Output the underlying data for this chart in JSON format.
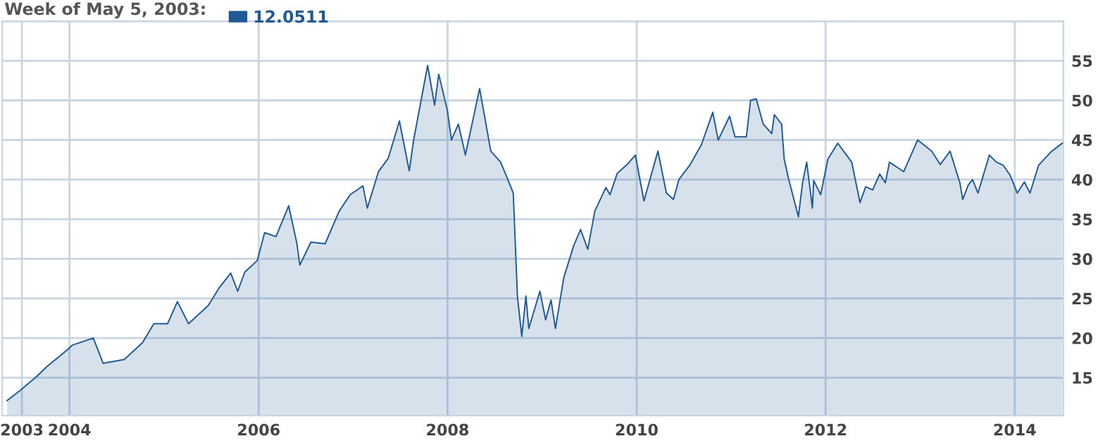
{
  "chart_data": {
    "type": "area",
    "title": "Week of May 5, 2003:",
    "series": [
      {
        "name": "12.0511",
        "color": "#1f5a96",
        "x": [
          "2003-05-05",
          "2003-06-25",
          "2003-08-29",
          "2003-10-06",
          "2003-12-27",
          "2004-01-12",
          "2004-04-02",
          "2004-05-10",
          "2004-07-31",
          "2004-10-09",
          "2004-11-22",
          "2005-01-14",
          "2005-02-21",
          "2005-04-05",
          "2005-06-20",
          "2005-08-03",
          "2005-09-15",
          "2005-10-12",
          "2005-11-08",
          "2005-12-27",
          "2006-01-24",
          "2006-03-09",
          "2006-04-27",
          "2006-05-29",
          "2006-06-09",
          "2006-07-22",
          "2006-09-15",
          "2006-11-08",
          "2006-12-21",
          "2007-02-08",
          "2007-02-25",
          "2007-04-09",
          "2007-05-17",
          "2007-06-29",
          "2007-08-06",
          "2007-08-23",
          "2007-10-16",
          "2007-11-12",
          "2007-11-28",
          "2007-12-31",
          "2008-01-16",
          "2008-02-12",
          "2008-03-10",
          "2008-05-04",
          "2008-06-16",
          "2008-07-24",
          "2008-08-20",
          "2008-09-11",
          "2008-09-27",
          "2008-10-14",
          "2008-10-30",
          "2008-11-10",
          "2008-12-23",
          "2009-01-14",
          "2009-02-04",
          "2009-02-21",
          "2009-03-25",
          "2009-05-02",
          "2009-05-29",
          "2009-06-26",
          "2009-07-23",
          "2009-09-04",
          "2009-09-20",
          "2009-10-18",
          "2009-11-25",
          "2009-12-27",
          "2010-01-29",
          "2010-03-24",
          "2010-04-26",
          "2010-05-23",
          "2010-06-13",
          "2010-07-27",
          "2010-09-08",
          "2010-10-22",
          "2010-11-12",
          "2010-12-26",
          "2011-01-16",
          "2011-03-01",
          "2011-03-17",
          "2011-04-08",
          "2011-05-05",
          "2011-06-07",
          "2011-06-17",
          "2011-07-15",
          "2011-07-25",
          "2011-08-11",
          "2011-09-18",
          "2011-10-04",
          "2011-10-20",
          "2011-11-11",
          "2011-11-16",
          "2011-12-13",
          "2012-01-10",
          "2012-02-17",
          "2012-04-11",
          "2012-05-13",
          "2012-06-04",
          "2012-07-01",
          "2012-07-28",
          "2012-08-19",
          "2012-09-04",
          "2012-10-29",
          "2012-12-22",
          "2013-02-14",
          "2013-03-19",
          "2013-04-26",
          "2013-06-03",
          "2013-06-14",
          "2013-07-05",
          "2013-07-22",
          "2013-08-12",
          "2013-09-25",
          "2013-10-22",
          "2013-11-18",
          "2013-12-15",
          "2014-01-11",
          "2014-02-07",
          "2014-03-01",
          "2014-04-03",
          "2014-05-21",
          "2014-07-04"
        ],
        "values": [
          12.1,
          13.4,
          15.2,
          16.4,
          18.6,
          19.1,
          20.0,
          16.8,
          17.3,
          19.4,
          21.8,
          21.8,
          24.6,
          21.8,
          24.1,
          26.4,
          28.2,
          25.9,
          28.3,
          29.8,
          33.3,
          32.8,
          36.7,
          31.9,
          29.2,
          32.1,
          31.9,
          36.0,
          38.1,
          39.2,
          36.4,
          41.0,
          42.7,
          47.4,
          41.1,
          45.0,
          54.4,
          49.4,
          53.3,
          48.8,
          45.0,
          47.0,
          43.1,
          51.5,
          43.6,
          42.2,
          40.1,
          38.3,
          25.3,
          20.2,
          25.3,
          21.2,
          25.9,
          22.3,
          24.8,
          21.2,
          27.6,
          31.6,
          33.7,
          31.2,
          36.0,
          39.0,
          38.1,
          40.8,
          41.9,
          43.1,
          37.3,
          43.6,
          38.3,
          37.5,
          40.0,
          41.9,
          44.4,
          48.5,
          45.0,
          48.0,
          45.4,
          45.4,
          50.0,
          50.2,
          47.0,
          45.8,
          48.2,
          47.0,
          42.6,
          40.1,
          35.3,
          39.6,
          42.2,
          36.4,
          39.9,
          38.1,
          42.6,
          44.6,
          42.2,
          37.1,
          39.1,
          38.7,
          40.7,
          39.6,
          42.2,
          41.0,
          45.0,
          43.6,
          41.9,
          43.6,
          39.6,
          37.5,
          39.3,
          40.0,
          38.3,
          43.1,
          42.2,
          41.8,
          40.5,
          38.3,
          39.7,
          38.3,
          41.8,
          43.5,
          44.6
        ]
      }
    ],
    "xlim": [
      "2003-04-16",
      "2014-07-08"
    ],
    "xticks": [
      {
        "value": "2003-07-01",
        "label": "2003"
      },
      {
        "value": "2004-01-01",
        "label": "2004"
      },
      {
        "value": "2006-01-01",
        "label": "2006"
      },
      {
        "value": "2008-01-01",
        "label": "2008"
      },
      {
        "value": "2010-01-01",
        "label": "2010"
      },
      {
        "value": "2012-01-01",
        "label": "2012"
      },
      {
        "value": "2014-01-01",
        "label": "2014"
      }
    ],
    "ylim": [
      10.2,
      60
    ],
    "yticks": [
      15,
      20,
      25,
      30,
      35,
      40,
      45,
      50,
      55,
      {
        "value": 60,
        "label": null
      }
    ],
    "grid": true,
    "legend": "top left"
  }
}
